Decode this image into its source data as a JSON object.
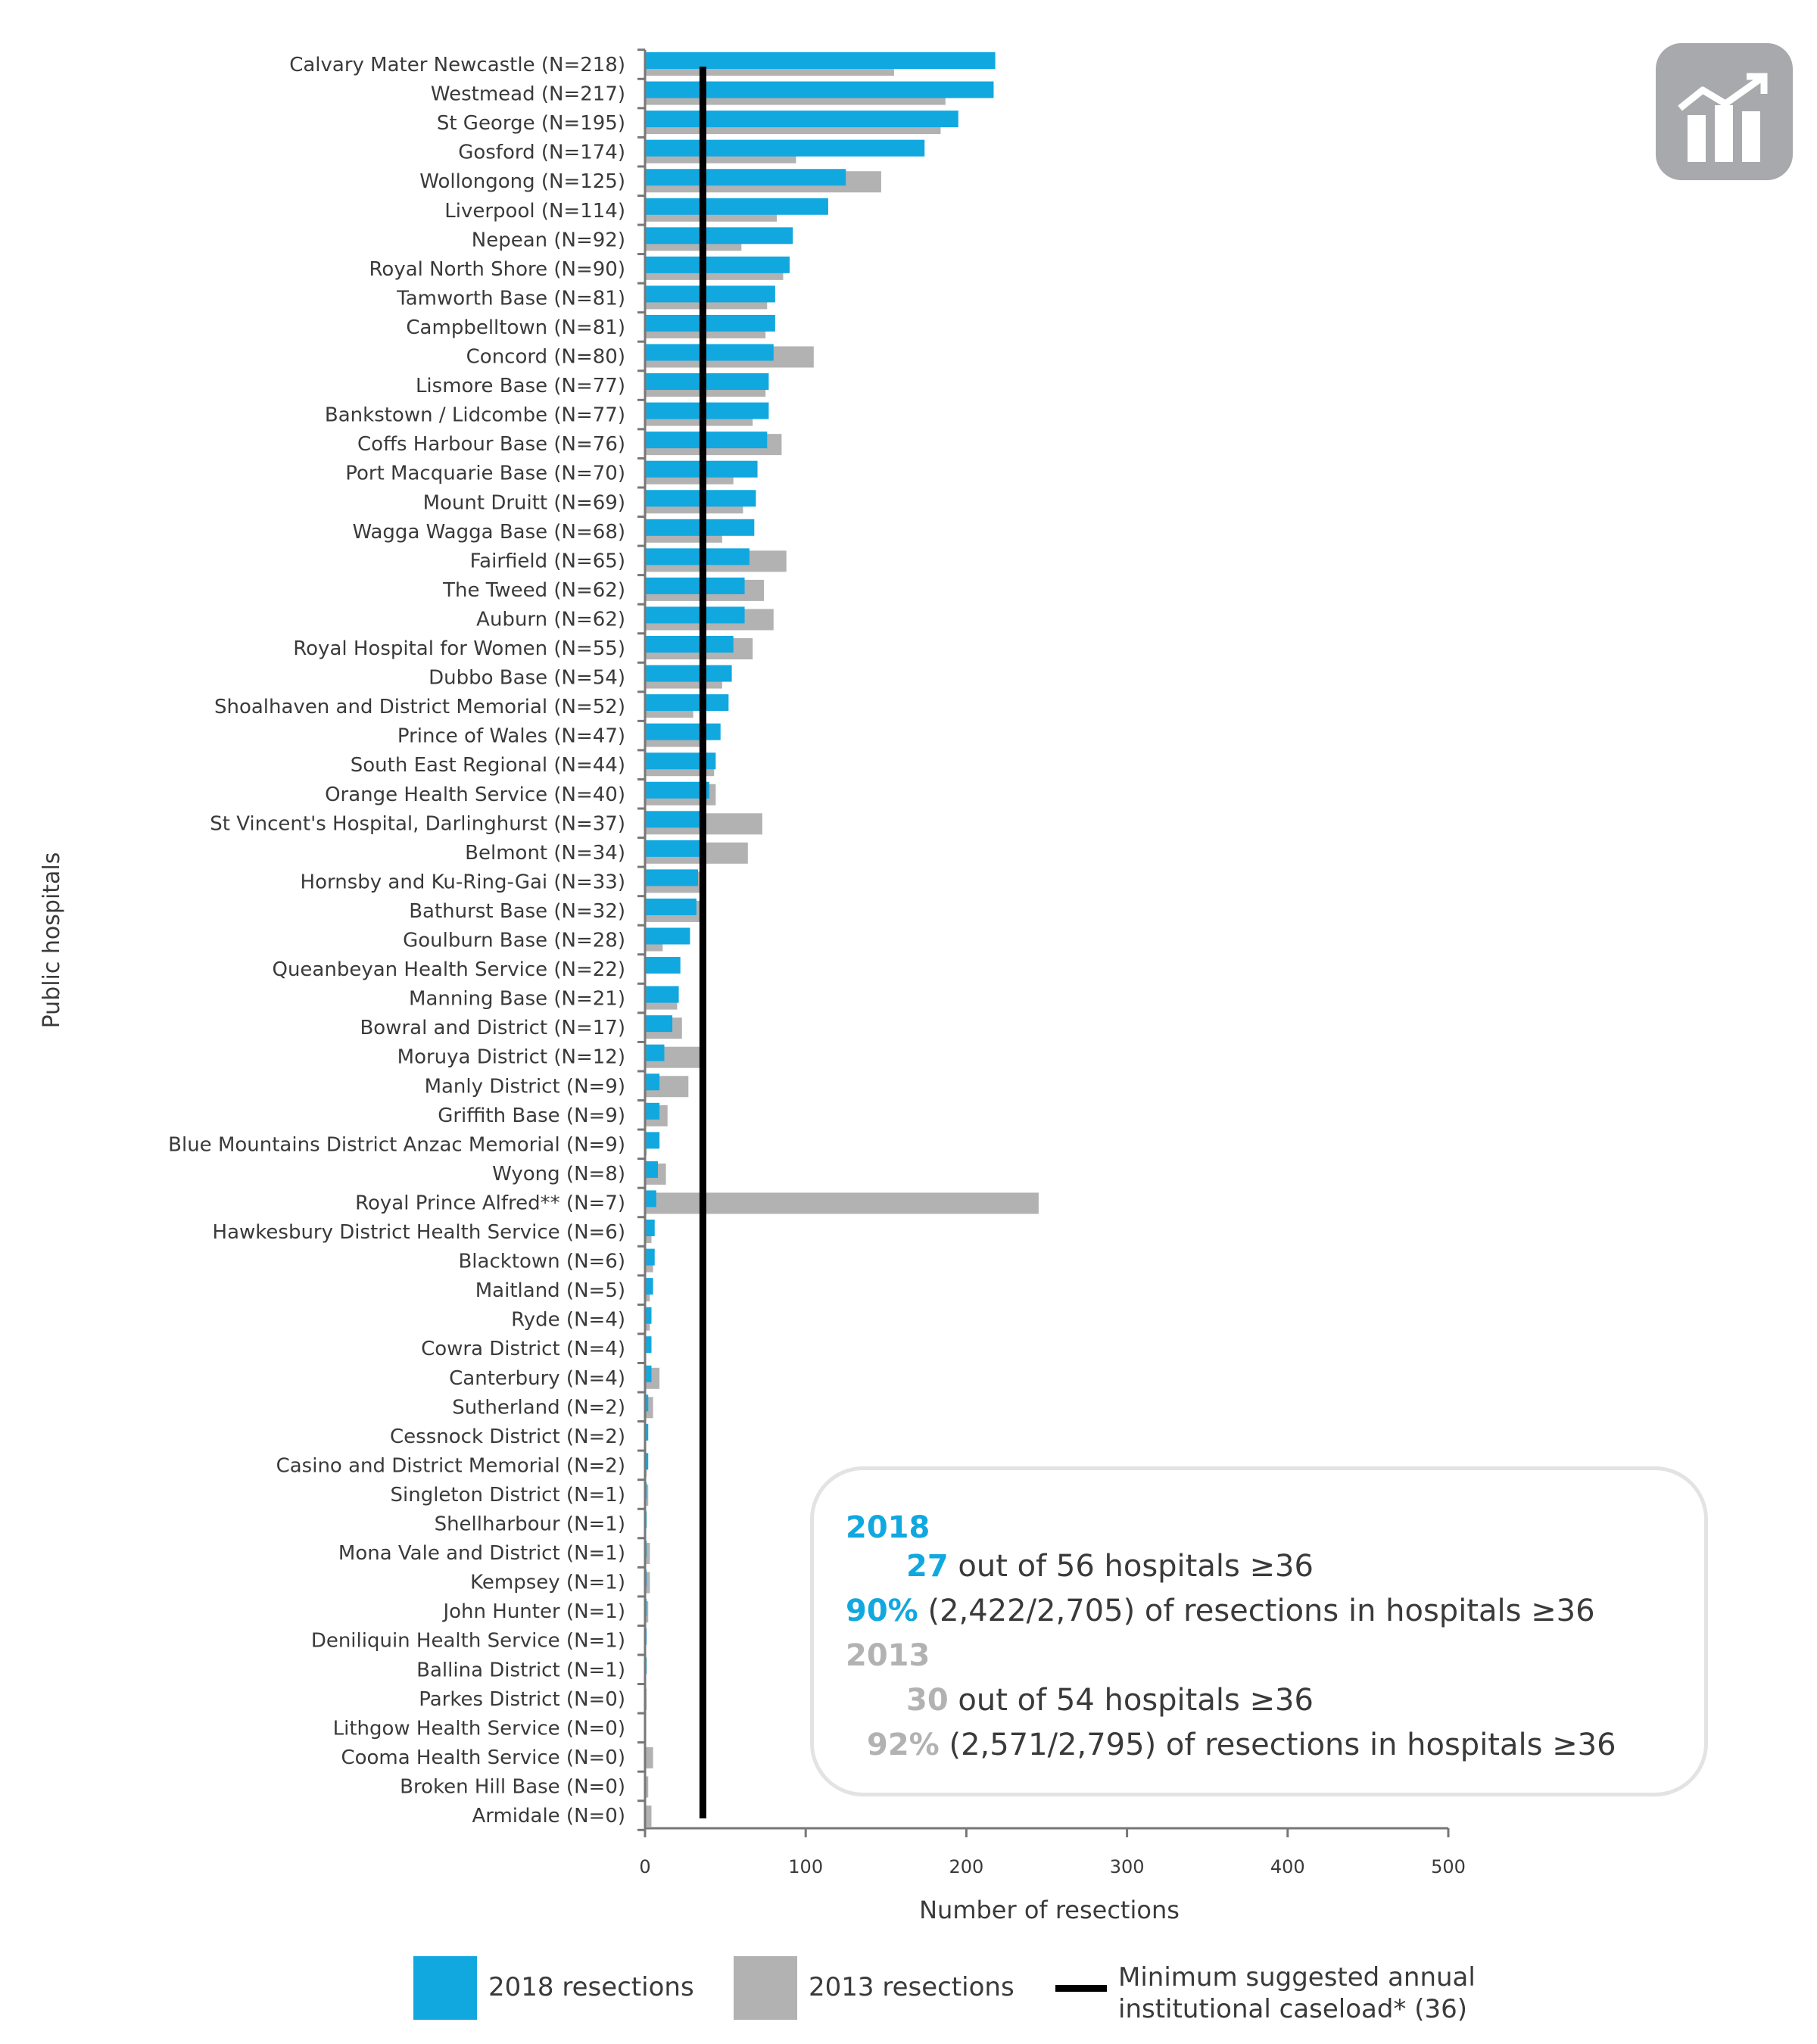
{
  "chart_data": {
    "type": "bar",
    "orientation": "horizontal",
    "ylabel": "Public hospitals",
    "xlabel": "Number of resections",
    "xlim": [
      0,
      500
    ],
    "xticks": [
      0,
      100,
      200,
      300,
      400,
      500
    ],
    "grid": false,
    "legend_position": "bottom",
    "colors": {
      "2018": "#11a8e0",
      "2013": "#b2b2b2",
      "threshold": "#000000"
    },
    "categories": [
      "Calvary Mater Newcastle (N=218)",
      "Westmead (N=217)",
      "St George (N=195)",
      "Gosford (N=174)",
      "Wollongong (N=125)",
      "Liverpool (N=114)",
      "Nepean (N=92)",
      "Royal North Shore (N=90)",
      "Tamworth Base (N=81)",
      "Campbelltown (N=81)",
      "Concord (N=80)",
      "Lismore Base (N=77)",
      "Bankstown / Lidcombe (N=77)",
      "Coffs Harbour Base (N=76)",
      "Port Macquarie Base (N=70)",
      "Mount Druitt (N=69)",
      "Wagga Wagga Base (N=68)",
      "Fairfield (N=65)",
      "The Tweed (N=62)",
      "Auburn (N=62)",
      "Royal Hospital for Women (N=55)",
      "Dubbo Base (N=54)",
      "Shoalhaven and District Memorial (N=52)",
      "Prince of Wales (N=47)",
      "South East Regional (N=44)",
      "Orange Health Service (N=40)",
      "St Vincent's Hospital, Darlinghurst (N=37)",
      "Belmont (N=34)",
      "Hornsby and Ku-Ring-Gai (N=33)",
      "Bathurst Base (N=32)",
      "Goulburn Base (N=28)",
      "Queanbeyan Health Service (N=22)",
      "Manning Base (N=21)",
      "Bowral and District (N=17)",
      "Moruya District (N=12)",
      "Manly District (N=9)",
      "Griffith Base (N=9)",
      "Blue Mountains District Anzac Memorial (N=9)",
      "Wyong (N=8)",
      "Royal Prince Alfred** (N=7)",
      "Hawkesbury District Health Service (N=6)",
      "Blacktown (N=6)",
      "Maitland (N=5)",
      "Ryde (N=4)",
      "Cowra District (N=4)",
      "Canterbury (N=4)",
      "Sutherland (N=2)",
      "Cessnock District (N=2)",
      "Casino and District Memorial (N=2)",
      "Singleton District (N=1)",
      "Shellharbour (N=1)",
      "Mona Vale and District (N=1)",
      "Kempsey (N=1)",
      "John Hunter (N=1)",
      "Deniliquin Health Service (N=1)",
      "Ballina District (N=1)",
      "Parkes District (N=0)",
      "Lithgow Health Service (N=0)",
      "Cooma Health Service (N=0)",
      "Broken Hill Base (N=0)",
      "Armidale (N=0)"
    ],
    "series": [
      {
        "name": "2018 resections",
        "values": [
          218,
          217,
          195,
          174,
          125,
          114,
          92,
          90,
          81,
          81,
          80,
          77,
          77,
          76,
          70,
          69,
          68,
          65,
          62,
          62,
          55,
          54,
          52,
          47,
          44,
          40,
          37,
          34,
          33,
          32,
          28,
          22,
          21,
          17,
          12,
          9,
          9,
          9,
          8,
          7,
          6,
          6,
          5,
          4,
          4,
          4,
          2,
          2,
          2,
          1,
          1,
          1,
          1,
          1,
          1,
          1,
          0,
          0,
          0,
          0,
          0
        ]
      },
      {
        "name": "2013 resections",
        "values": [
          155,
          187,
          184,
          94,
          147,
          82,
          60,
          86,
          76,
          75,
          105,
          75,
          67,
          85,
          55,
          61,
          48,
          88,
          74,
          80,
          67,
          48,
          30,
          35,
          43,
          44,
          73,
          64,
          35,
          34,
          11,
          0,
          20,
          23,
          34,
          27,
          14,
          1,
          13,
          245,
          4,
          5,
          3,
          3,
          0,
          9,
          5,
          0,
          1,
          2,
          0,
          3,
          3,
          2,
          0,
          0,
          1,
          0,
          5,
          2,
          4
        ]
      }
    ],
    "threshold": {
      "name": "Minimum suggested annual institutional caseload* (36)",
      "value": 36
    }
  },
  "legend": {
    "item_2018": "2018 resections",
    "item_2013": "2013 resections",
    "threshold_line1": "Minimum suggested annual",
    "threshold_line2": "institutional caseload* (36)"
  },
  "summary": {
    "year_2018": "2018",
    "count_2018": "27",
    "count_2018_text": " out of 56 hospitals ≥36",
    "pct_2018": "90%",
    "pct_2018_text": " (2,422/2,705) of resections in hospitals ≥36",
    "year_2013": "2013",
    "count_2013": "30",
    "count_2013_text": " out of 54 hospitals ≥36",
    "pct_2013": "92%",
    "pct_2013_text": " (2,571/2,795) of resections in hospitals ≥36"
  },
  "icon": "bar-chart-trend-icon"
}
